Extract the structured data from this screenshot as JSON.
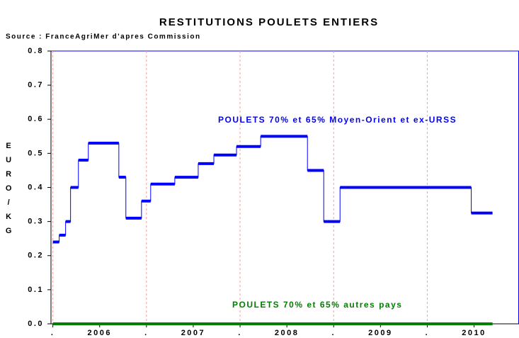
{
  "chart_data": {
    "type": "line",
    "step": "post",
    "title": "RESTITUTIONS POULETS ENTIERS",
    "subtitle": "Source : FranceAgriMer d'apres Commission",
    "y_label": "EURO/KG",
    "xlim": [
      2005.98,
      2010.98
    ],
    "xticks": [
      {
        "value": 2006,
        "label": "."
      },
      {
        "value": 2006.5,
        "label": "2006"
      },
      {
        "value": 2007,
        "label": "."
      },
      {
        "value": 2007.5,
        "label": "2007"
      },
      {
        "value": 2008,
        "label": "."
      },
      {
        "value": 2008.5,
        "label": "2008"
      },
      {
        "value": 2009,
        "label": "."
      },
      {
        "value": 2009.5,
        "label": "2009"
      },
      {
        "value": 2010,
        "label": "."
      },
      {
        "value": 2010.5,
        "label": "2010"
      }
    ],
    "ylim": [
      0,
      0.8
    ],
    "yticks": [
      {
        "value": 0,
        "label": "0.0"
      },
      0.1,
      0.2,
      0.3,
      0.4,
      0.5,
      0.6,
      0.7,
      0.8
    ],
    "grid": "x",
    "series": [
      {
        "name": "POULETS 70% et 65% Moyen-Orient et ex-URSS",
        "color": "#0000ff",
        "x": [
          2006.0,
          2006.068,
          2006.136,
          2006.189,
          2006.273,
          2006.379,
          2006.705,
          2006.78,
          2006.947,
          2007.045,
          2007.303,
          2007.553,
          2007.72,
          2007.962,
          2008.22,
          2008.72,
          2008.894,
          2009.068,
          2010.47,
          2010.697
        ],
        "values": [
          0.24,
          0.26,
          0.3,
          0.4,
          0.48,
          0.53,
          0.43,
          0.31,
          0.36,
          0.41,
          0.43,
          0.47,
          0.495,
          0.52,
          0.55,
          0.45,
          0.3,
          0.4,
          0.325,
          0.325
        ]
      },
      {
        "name": "POULETS 70% et 65% autres pays",
        "color": "#008000",
        "x": [
          2006.0,
          2010.697
        ],
        "values": [
          0,
          0
        ]
      }
    ]
  }
}
